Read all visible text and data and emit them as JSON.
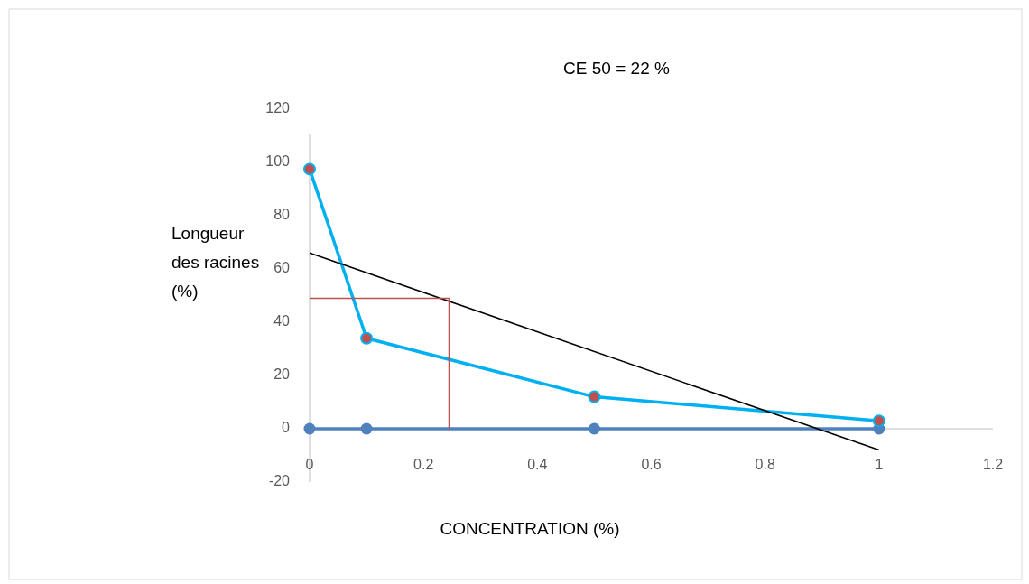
{
  "chart_data": {
    "type": "line",
    "title": "CE 50 = 22 %",
    "xlabel": "CONCENTRATION  (%)",
    "ylabel": "Longueur des racines (%)",
    "x": [
      0,
      0.1,
      0.5,
      1
    ],
    "series": [
      {
        "color": "#4f81bd",
        "values": [
          0,
          0,
          0,
          0
        ],
        "marker": "circle"
      },
      {
        "color": "#00b0f0",
        "values": [
          97.5,
          34,
          12,
          3
        ],
        "marker": "none"
      },
      {
        "type": "scatter",
        "color": "#c0504d",
        "values": [
          97.5,
          34,
          12,
          3
        ],
        "marker": "circle"
      },
      {
        "color": "#000000",
        "x": [
          0,
          1
        ],
        "values": [
          66,
          -8
        ],
        "marker": "none"
      },
      {
        "color": "#c0504d",
        "x": [
          0,
          0.245,
          0.245
        ],
        "values": [
          49,
          49,
          0
        ],
        "marker": "none"
      }
    ],
    "xlim": [
      0,
      1.2
    ],
    "xticks": [
      0,
      0.2,
      0.4,
      0.6,
      0.8,
      1,
      1.2
    ],
    "ylim": [
      -20,
      120
    ],
    "yticks": [
      -20,
      0,
      20,
      40,
      60,
      80,
      100,
      120
    ],
    "grid": false
  }
}
